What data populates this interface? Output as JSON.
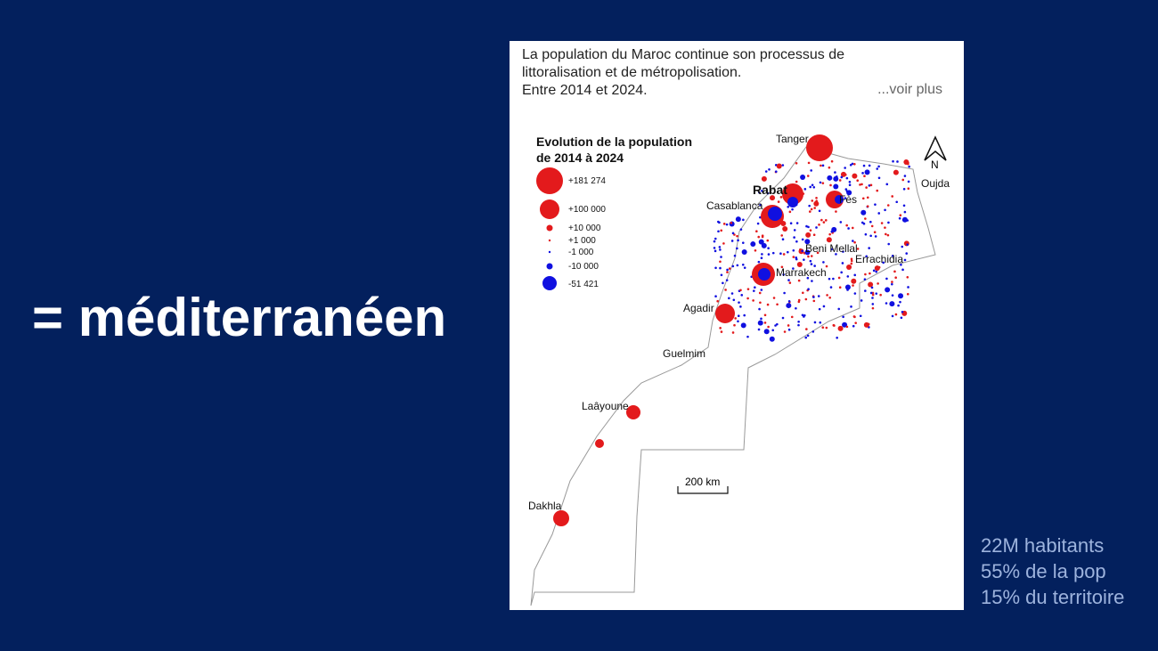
{
  "slide": {
    "title": "= méditerranéen",
    "stats": [
      "22M habitants",
      "55% de la pop",
      "15% du territoire"
    ]
  },
  "post": {
    "caption": [
      "La population du Maroc continue son processus de",
      "littoralisation et de métropolisation.",
      "Entre 2014 et 2024."
    ],
    "more": "...voir plus"
  },
  "map": {
    "legend_title": [
      "Evolution de la population",
      "de 2014 à 2024"
    ],
    "legend": [
      "+181 274",
      "+100 000",
      "+10 000",
      "+1 000",
      "-1 000",
      "-10 000",
      "-51 421"
    ],
    "north": "N",
    "scale": "200 km",
    "cities": [
      "Tanger",
      "Oujda",
      "Rabat",
      "Casablanca",
      "Fès",
      "Beni Mellal",
      "Errachidia",
      "Marrakech",
      "Agadir",
      "Guelmim",
      "Laâyoune",
      "Dakhla"
    ]
  }
}
